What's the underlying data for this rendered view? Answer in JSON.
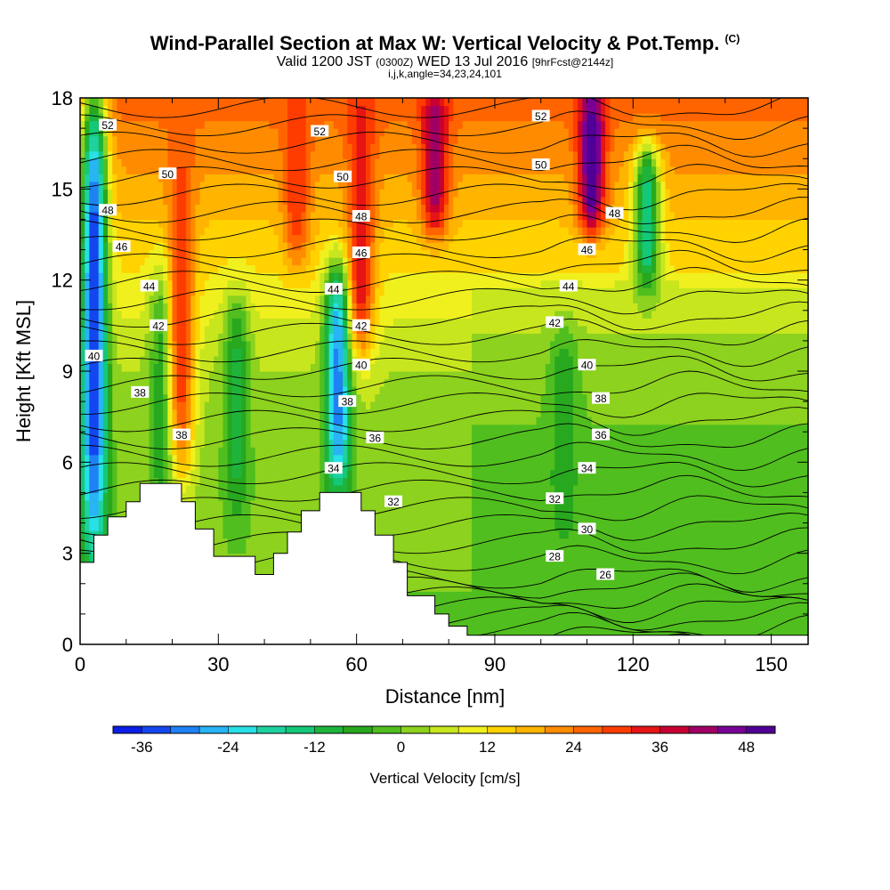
{
  "header": {
    "title": "Wind-Parallel Section at Max W: Vertical Velocity & Pot.Temp.",
    "copyright": "(C)",
    "valid_prefix": "Valid 1200 JST",
    "valid_utc": "(0300Z)",
    "valid_date": "WED 13 Jul 2016",
    "forecast": "[9hrFcst@2144z]",
    "indices": "i,j,k,angle=34,23,24,101"
  },
  "chart_data": {
    "type": "heatmap",
    "xlabel": "Distance [nm]",
    "ylabel": "Height [Kft MSL]",
    "xlim": [
      0,
      158
    ],
    "ylim": [
      0,
      18
    ],
    "x_ticks": [
      0,
      30,
      60,
      90,
      120,
      150
    ],
    "y_ticks": [
      0,
      3,
      6,
      9,
      12,
      15,
      18
    ],
    "colorbar": {
      "label": "Vertical Velocity [cm/s]",
      "min": -40,
      "max": 52,
      "step": 4,
      "tick_values": [
        -36,
        -24,
        -12,
        0,
        12,
        24,
        36,
        48
      ],
      "colors": [
        "#0a1ee6",
        "#1446f0",
        "#1e82f5",
        "#28b4f5",
        "#28e0e6",
        "#1ed2a0",
        "#14c878",
        "#1eb43c",
        "#28a81e",
        "#50be1e",
        "#8cd21e",
        "#c8e61e",
        "#f0f01e",
        "#ffd200",
        "#ffb400",
        "#ff8c00",
        "#ff6400",
        "#ff3c00",
        "#e61414",
        "#c80032",
        "#a00064",
        "#780096",
        "#500096"
      ]
    },
    "velocity_features": [
      {
        "x": 3,
        "ymin": 3,
        "ymax": 18,
        "peak": -36
      },
      {
        "x": 18,
        "ymin": 4.5,
        "ymax": 12,
        "peak": -8
      },
      {
        "x": 22,
        "ymin": 6,
        "ymax": 16.5,
        "peak": 32
      },
      {
        "x": 34,
        "ymin": 4.5,
        "ymax": 11,
        "peak": -10
      },
      {
        "x": 47,
        "ymin": 13,
        "ymax": 18,
        "peak": 32
      },
      {
        "x": 56,
        "ymin": 5.5,
        "ymax": 12,
        "peak": -30
      },
      {
        "x": 61,
        "ymin": 10,
        "ymax": 18,
        "peak": 36
      },
      {
        "x": 77,
        "ymin": 14,
        "ymax": 18,
        "peak": 44
      },
      {
        "x": 111,
        "ymin": 14,
        "ymax": 18,
        "peak": 52
      },
      {
        "x": 123,
        "ymin": 12,
        "ymax": 16,
        "peak": -16
      },
      {
        "x": 105,
        "ymin": 4,
        "ymax": 10,
        "peak": -8
      }
    ],
    "theta_contours": {
      "levels": [
        26,
        28,
        30,
        32,
        34,
        36,
        38,
        40,
        42,
        44,
        46,
        48,
        50,
        52
      ],
      "labels": [
        {
          "text": "52",
          "x": 6,
          "y": 17.1
        },
        {
          "text": "52",
          "x": 52,
          "y": 16.9
        },
        {
          "text": "52",
          "x": 100,
          "y": 17.4
        },
        {
          "text": "50",
          "x": 19,
          "y": 15.5
        },
        {
          "text": "50",
          "x": 57,
          "y": 15.4
        },
        {
          "text": "50",
          "x": 100,
          "y": 15.8
        },
        {
          "text": "48",
          "x": 6,
          "y": 14.3
        },
        {
          "text": "48",
          "x": 61,
          "y": 14.1
        },
        {
          "text": "48",
          "x": 116,
          "y": 14.2
        },
        {
          "text": "46",
          "x": 9,
          "y": 13.1
        },
        {
          "text": "46",
          "x": 61,
          "y": 12.9
        },
        {
          "text": "46",
          "x": 110,
          "y": 13
        },
        {
          "text": "44",
          "x": 15,
          "y": 11.8
        },
        {
          "text": "44",
          "x": 55,
          "y": 11.7
        },
        {
          "text": "44",
          "x": 106,
          "y": 11.8
        },
        {
          "text": "42",
          "x": 17,
          "y": 10.5
        },
        {
          "text": "42",
          "x": 61,
          "y": 10.5
        },
        {
          "text": "42",
          "x": 103,
          "y": 10.6
        },
        {
          "text": "40",
          "x": 3,
          "y": 9.5
        },
        {
          "text": "40",
          "x": 61,
          "y": 9.2
        },
        {
          "text": "40",
          "x": 110,
          "y": 9.2
        },
        {
          "text": "38",
          "x": 13,
          "y": 8.3
        },
        {
          "text": "38",
          "x": 58,
          "y": 8
        },
        {
          "text": "38",
          "x": 113,
          "y": 8.1
        },
        {
          "text": "38",
          "x": 22,
          "y": 6.9
        },
        {
          "text": "36",
          "x": 64,
          "y": 6.8
        },
        {
          "text": "36",
          "x": 113,
          "y": 6.9
        },
        {
          "text": "34",
          "x": 55,
          "y": 5.8
        },
        {
          "text": "34",
          "x": 110,
          "y": 5.8
        },
        {
          "text": "32",
          "x": 68,
          "y": 4.7
        },
        {
          "text": "32",
          "x": 103,
          "y": 4.8
        },
        {
          "text": "30",
          "x": 110,
          "y": 3.8
        },
        {
          "text": "28",
          "x": 103,
          "y": 2.9
        },
        {
          "text": "26",
          "x": 114,
          "y": 2.3
        }
      ]
    },
    "terrain": [
      [
        0,
        2.7
      ],
      [
        3,
        2.7
      ],
      [
        3,
        3.6
      ],
      [
        6,
        3.6
      ],
      [
        6,
        4.2
      ],
      [
        10,
        4.2
      ],
      [
        10,
        4.7
      ],
      [
        13,
        4.7
      ],
      [
        13,
        5.3
      ],
      [
        22,
        5.3
      ],
      [
        22,
        4.7
      ],
      [
        25,
        4.7
      ],
      [
        25,
        3.8
      ],
      [
        29,
        3.8
      ],
      [
        29,
        2.9
      ],
      [
        38,
        2.9
      ],
      [
        38,
        2.3
      ],
      [
        42,
        2.3
      ],
      [
        42,
        3.0
      ],
      [
        45,
        3.0
      ],
      [
        45,
        3.7
      ],
      [
        48,
        3.7
      ],
      [
        48,
        4.4
      ],
      [
        52,
        4.4
      ],
      [
        52,
        5.0
      ],
      [
        61,
        5.0
      ],
      [
        61,
        4.4
      ],
      [
        64,
        4.4
      ],
      [
        64,
        3.6
      ],
      [
        68,
        3.6
      ],
      [
        68,
        2.7
      ],
      [
        71,
        2.7
      ],
      [
        71,
        1.6
      ],
      [
        77,
        1.6
      ],
      [
        77,
        1.0
      ],
      [
        80,
        1.0
      ],
      [
        80,
        0.6
      ],
      [
        84,
        0.6
      ],
      [
        84,
        0.3
      ],
      [
        158,
        0.3
      ]
    ]
  }
}
